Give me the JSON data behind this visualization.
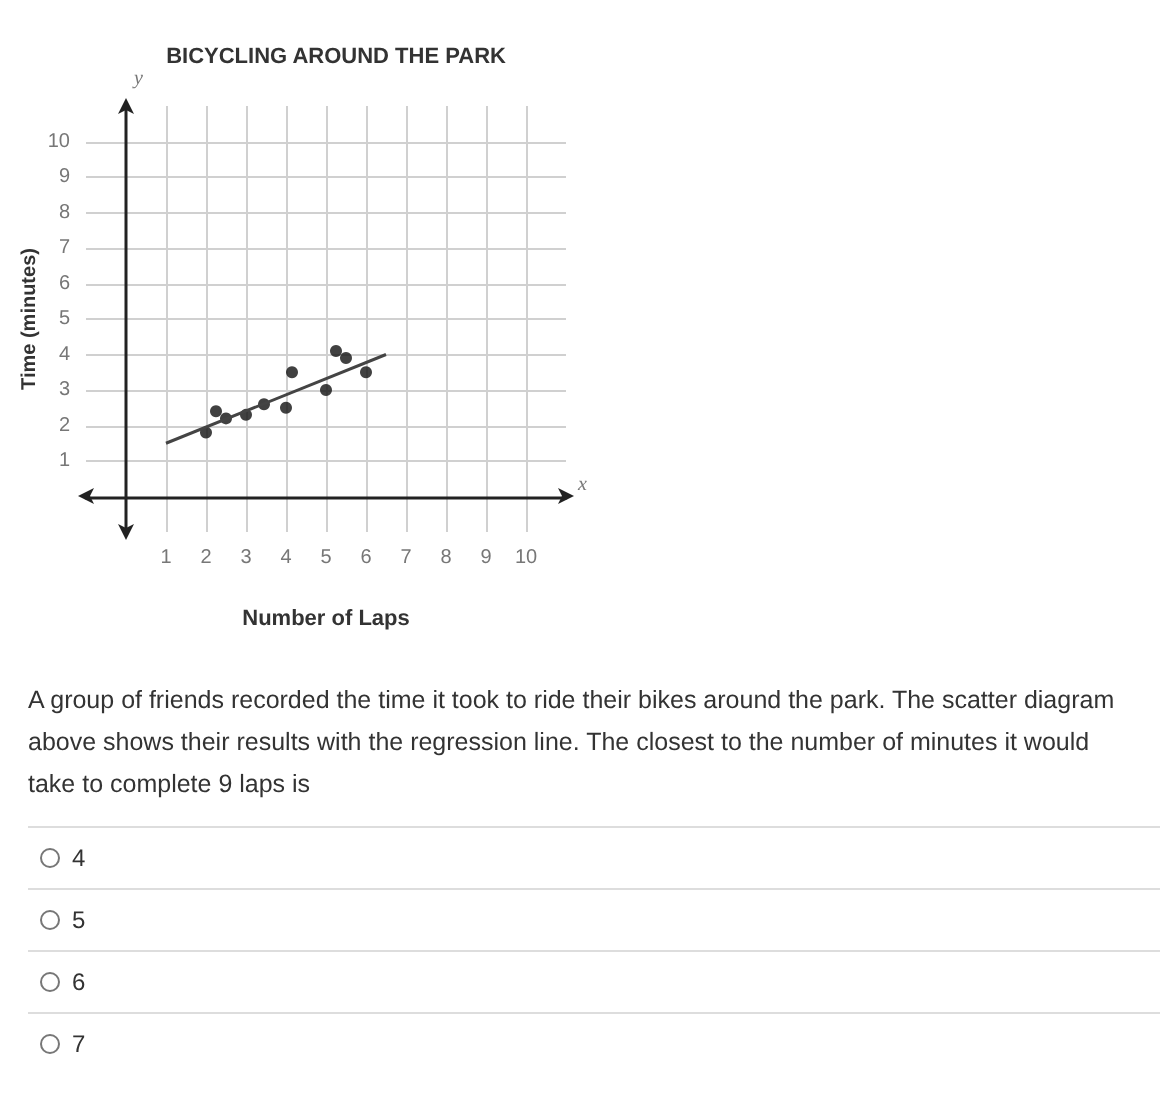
{
  "chart_data": {
    "type": "scatter",
    "title": "BICYCLING AROUND THE PARK",
    "xlabel": "Number of Laps",
    "ylabel": "Time (minutes)",
    "series": [
      {
        "color": "#111111",
        "marker": "circle",
        "x": [
          2,
          2.25,
          2.5,
          3,
          3.45,
          4,
          4.15,
          5,
          5.25,
          5.5,
          6
        ],
        "values": [
          1.8,
          2.4,
          2.2,
          2.3,
          2.6,
          2.5,
          3.5,
          3,
          4.1,
          3.9,
          3.5
        ]
      },
      {
        "type": "line",
        "color": "#444444",
        "marker": "none",
        "x": [
          1,
          6.5
        ],
        "values": [
          1.5,
          4
        ]
      }
    ],
    "xlim": [
      -1,
      11
    ],
    "ylim": [
      -1,
      11
    ],
    "xticks": [
      1,
      2,
      3,
      4,
      5,
      6,
      7,
      8,
      9,
      10
    ],
    "yticks": [
      1,
      2,
      3,
      4,
      5,
      6,
      7,
      8,
      9,
      10
    ],
    "grid": true,
    "annotations": [
      "x",
      "y",
      "A group of friends recorded the time it took to ride their bikes around the park. The scatter diagram above shows their results with the regression line. The closest to the number of minutes it would take to complete 9 laps is",
      "4",
      "5",
      "6",
      "7"
    ]
  }
}
